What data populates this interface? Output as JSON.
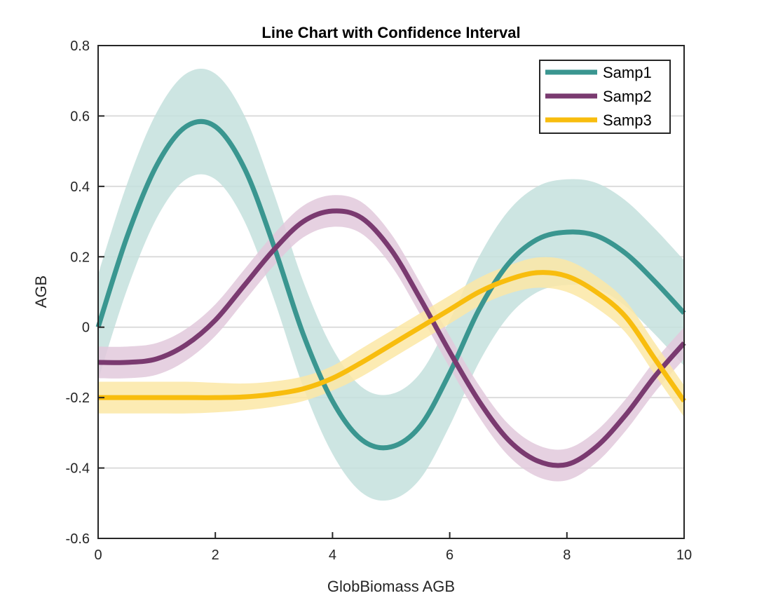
{
  "chart_data": {
    "type": "line",
    "title": "Line Chart with Confidence Interval",
    "xlabel": "GlobBiomass AGB",
    "ylabel": "AGB",
    "xlim": [
      0,
      10
    ],
    "ylim": [
      -0.6,
      0.8
    ],
    "xticks": [
      "0",
      "2",
      "4",
      "6",
      "8",
      "10"
    ],
    "yticks": [
      "-0.6",
      "-0.4",
      "-0.2",
      "0",
      "0.2",
      "0.4",
      "0.6",
      "0.8"
    ],
    "ytick_values": [
      -0.6,
      -0.4,
      -0.2,
      0,
      0.2,
      0.4,
      0.6,
      0.8
    ],
    "xtick_values": [
      0,
      2,
      4,
      6,
      8,
      10
    ],
    "grid": "horizontal",
    "legend_position": "top-right",
    "x": [
      0,
      0.5,
      1,
      1.5,
      2,
      2.5,
      3,
      3.5,
      4,
      4.5,
      5,
      5.5,
      6,
      6.5,
      7,
      7.5,
      8,
      8.5,
      9,
      9.5,
      10
    ],
    "series": [
      {
        "name": "Samp1",
        "color": "#3a9690",
        "band_color": "#c4e0dd",
        "values": [
          0.0,
          0.26,
          0.46,
          0.57,
          0.57,
          0.45,
          0.23,
          -0.02,
          -0.21,
          -0.32,
          -0.34,
          -0.28,
          -0.13,
          0.05,
          0.18,
          0.25,
          0.27,
          0.26,
          0.21,
          0.13,
          0.04
        ],
        "lower": [
          -0.15,
          0.11,
          0.31,
          0.42,
          0.42,
          0.3,
          0.08,
          -0.17,
          -0.36,
          -0.47,
          -0.49,
          -0.43,
          -0.28,
          -0.1,
          0.03,
          0.1,
          0.12,
          0.11,
          0.06,
          -0.02,
          -0.11
        ],
        "upper": [
          0.15,
          0.41,
          0.61,
          0.72,
          0.72,
          0.6,
          0.38,
          0.13,
          -0.06,
          -0.17,
          -0.19,
          -0.13,
          0.02,
          0.2,
          0.33,
          0.4,
          0.42,
          0.41,
          0.36,
          0.28,
          0.19
        ]
      },
      {
        "name": "Samp2",
        "color": "#7a3a70",
        "band_color": "#e2c9dc",
        "values": [
          -0.1,
          -0.1,
          -0.09,
          -0.05,
          0.02,
          0.12,
          0.22,
          0.3,
          0.33,
          0.31,
          0.22,
          0.08,
          -0.07,
          -0.21,
          -0.32,
          -0.38,
          -0.39,
          -0.34,
          -0.25,
          -0.14,
          -0.045
        ],
        "lower": [
          -0.145,
          -0.145,
          -0.135,
          -0.095,
          -0.025,
          0.075,
          0.175,
          0.255,
          0.285,
          0.265,
          0.175,
          0.035,
          -0.115,
          -0.255,
          -0.365,
          -0.425,
          -0.435,
          -0.385,
          -0.295,
          -0.185,
          -0.09
        ],
        "upper": [
          -0.055,
          -0.055,
          -0.045,
          -0.005,
          0.065,
          0.165,
          0.265,
          0.345,
          0.375,
          0.355,
          0.265,
          0.125,
          -0.025,
          -0.165,
          -0.275,
          -0.335,
          -0.345,
          -0.295,
          -0.205,
          -0.095,
          0.0
        ]
      },
      {
        "name": "Samp3",
        "color": "#f8bd0e",
        "band_color": "#fce8a6",
        "values": [
          -0.2,
          -0.2,
          -0.2,
          -0.2,
          -0.2,
          -0.198,
          -0.19,
          -0.175,
          -0.145,
          -0.1,
          -0.05,
          0.0,
          0.05,
          0.1,
          0.135,
          0.155,
          0.145,
          0.1,
          0.03,
          -0.09,
          -0.21
        ],
        "lower": [
          -0.245,
          -0.245,
          -0.245,
          -0.245,
          -0.242,
          -0.236,
          -0.226,
          -0.21,
          -0.18,
          -0.14,
          -0.09,
          -0.04,
          0.01,
          0.06,
          0.095,
          0.112,
          0.1,
          0.055,
          -0.015,
          -0.135,
          -0.255
        ],
        "upper": [
          -0.155,
          -0.155,
          -0.155,
          -0.155,
          -0.158,
          -0.16,
          -0.154,
          -0.14,
          -0.11,
          -0.06,
          -0.01,
          0.04,
          0.09,
          0.14,
          0.175,
          0.198,
          0.19,
          0.145,
          0.075,
          -0.045,
          -0.165
        ]
      }
    ]
  }
}
